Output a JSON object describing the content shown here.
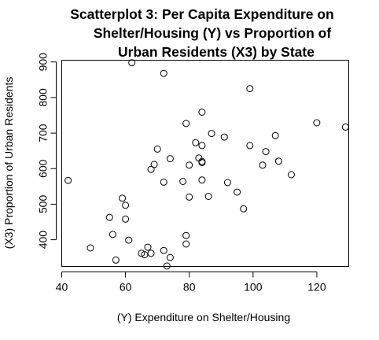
{
  "chart_data": {
    "type": "scatter",
    "title_lines": [
      "Scatterplot 3: Per Capita Expenditure on",
      "Shelter/Housing (Y) vs Proportion of",
      "Urban Residents (X3) by State"
    ],
    "xlabel": "(Y) Expenditure on Shelter/Housing",
    "ylabel": "(X3) Proportion of Urban Residents",
    "xlim": [
      40,
      130
    ],
    "ylim": [
      325,
      905
    ],
    "x_ticks": [
      40,
      60,
      80,
      100,
      120
    ],
    "y_ticks": [
      400,
      500,
      600,
      700,
      800,
      900
    ],
    "grid": false,
    "points": [
      [
        42,
        567
      ],
      [
        49,
        377
      ],
      [
        55,
        463
      ],
      [
        56,
        415
      ],
      [
        57,
        343
      ],
      [
        59,
        517
      ],
      [
        60,
        497
      ],
      [
        60,
        458
      ],
      [
        61,
        399
      ],
      [
        62,
        898
      ],
      [
        65,
        362
      ],
      [
        66,
        358
      ],
      [
        67,
        379
      ],
      [
        68,
        362
      ],
      [
        68,
        598
      ],
      [
        69,
        612
      ],
      [
        70,
        655
      ],
      [
        72,
        868
      ],
      [
        72,
        562
      ],
      [
        72,
        370
      ],
      [
        73,
        326
      ],
      [
        74,
        350
      ],
      [
        74,
        628
      ],
      [
        78,
        564
      ],
      [
        79,
        727
      ],
      [
        79,
        412
      ],
      [
        79,
        388
      ],
      [
        80,
        520
      ],
      [
        80,
        610
      ],
      [
        82,
        673
      ],
      [
        83,
        630
      ],
      [
        84,
        759
      ],
      [
        84,
        665
      ],
      [
        84,
        620
      ],
      [
        84,
        617
      ],
      [
        84,
        568
      ],
      [
        86,
        522
      ],
      [
        87,
        699
      ],
      [
        91,
        689
      ],
      [
        92,
        561
      ],
      [
        95,
        534
      ],
      [
        97,
        487
      ],
      [
        99,
        825
      ],
      [
        99,
        665
      ],
      [
        103,
        610
      ],
      [
        104,
        648
      ],
      [
        107,
        693
      ],
      [
        108,
        621
      ],
      [
        112,
        583
      ],
      [
        120,
        729
      ],
      [
        129,
        717
      ]
    ]
  }
}
